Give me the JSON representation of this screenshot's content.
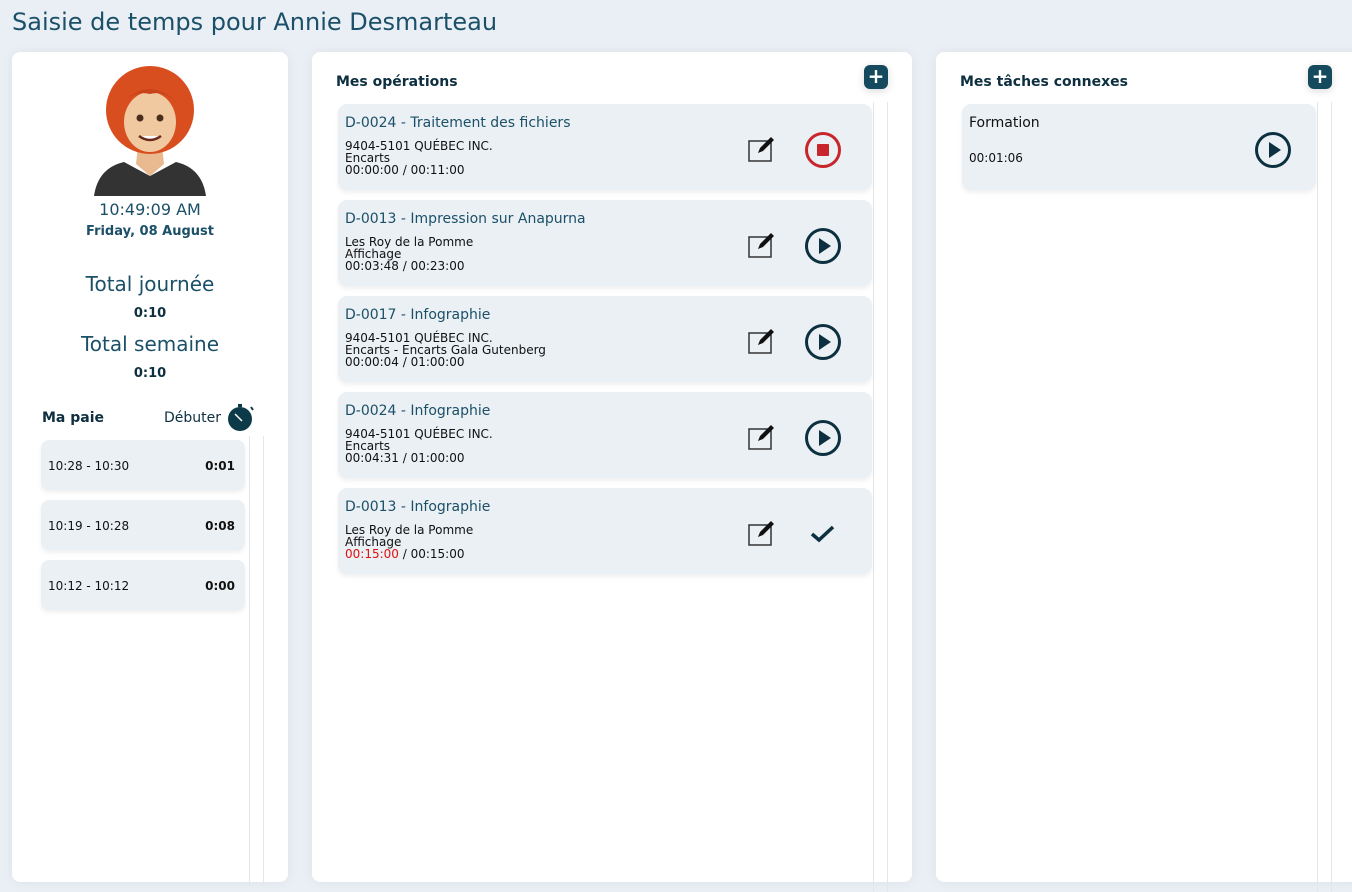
{
  "title": "Saisie de temps pour Annie Desmarteau",
  "profile": {
    "time": "10:49:09 AM",
    "date": "Friday, 08 August",
    "total_day_label": "Total journée",
    "total_day": "0:10",
    "total_week_label": "Total semaine",
    "total_week": "0:10"
  },
  "pay": {
    "title": "Ma paie",
    "start_label": "Débuter",
    "entries": [
      {
        "range": "10:28 - 10:30",
        "duration": "0:01"
      },
      {
        "range": "10:19 - 10:28",
        "duration": "0:08"
      },
      {
        "range": "10:12 - 10:12",
        "duration": "0:00"
      }
    ]
  },
  "operations": {
    "title": "Mes opérations",
    "items": [
      {
        "title": "D-0024 - Traitement des fichiers",
        "client": "9404-5101 QUÉBEC INC.",
        "product": "Encarts",
        "elapsed": "00:00:00",
        "planned": "00:11:00",
        "state": "running"
      },
      {
        "title": "D-0013 - Impression sur Anapurna",
        "client": "Les Roy de la Pomme",
        "product": "Affichage",
        "elapsed": "00:03:48",
        "planned": "00:23:00",
        "state": "stopped"
      },
      {
        "title": "D-0017 - Infographie",
        "client": "9404-5101 QUÉBEC INC.",
        "product": "Encarts - Encarts Gala Gutenberg",
        "elapsed": "00:00:04",
        "planned": "01:00:00",
        "state": "stopped"
      },
      {
        "title": "D-0024 - Infographie",
        "client": "9404-5101 QUÉBEC INC.",
        "product": "Encarts",
        "elapsed": "00:04:31",
        "planned": "01:00:00",
        "state": "stopped"
      },
      {
        "title": "D-0013 - Infographie",
        "client": "Les Roy de la Pomme",
        "product": "Affichage",
        "elapsed": "00:15:00",
        "planned": "00:15:00",
        "state": "done"
      }
    ]
  },
  "tasks": {
    "title": "Mes tâches connexes",
    "items": [
      {
        "title": "Formation",
        "elapsed": "00:01:06"
      }
    ]
  },
  "colors": {
    "primary": "#154a5e",
    "stop": "#c9252c",
    "overtime": "#e01010"
  }
}
